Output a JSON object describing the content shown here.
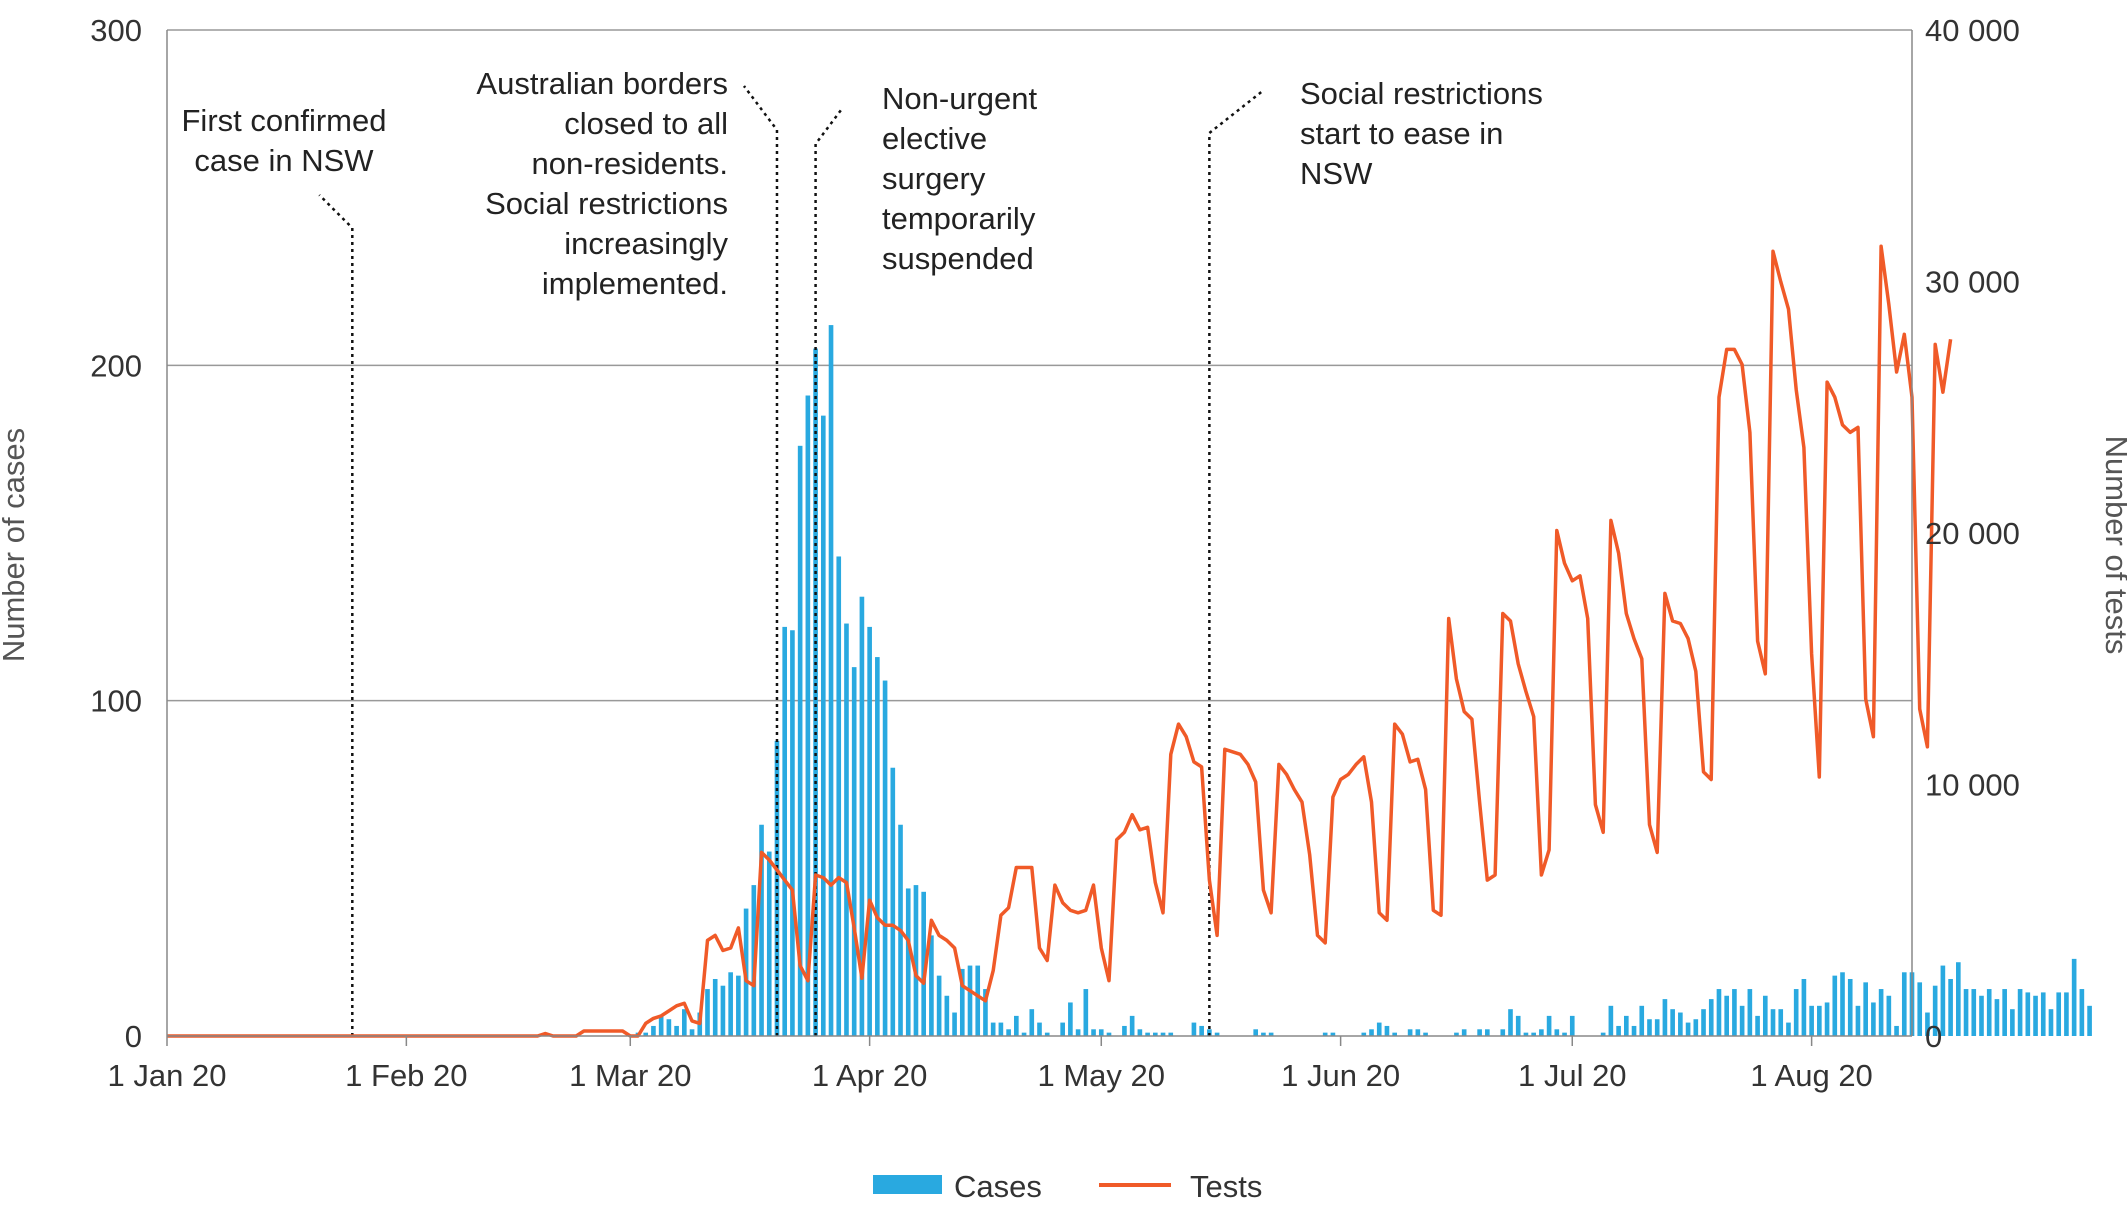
{
  "chart_data": {
    "type": "bar+line",
    "x_range": [
      "2020-01-01",
      "2020-08-14"
    ],
    "x_ticks": [
      {
        "date": "2020-01-01",
        "label": "1 Jan 20"
      },
      {
        "date": "2020-02-01",
        "label": "1 Feb 20"
      },
      {
        "date": "2020-03-01",
        "label": "1 Mar 20"
      },
      {
        "date": "2020-04-01",
        "label": "1 Apr 20"
      },
      {
        "date": "2020-05-01",
        "label": "1 May 20"
      },
      {
        "date": "2020-06-01",
        "label": "1 Jun 20"
      },
      {
        "date": "2020-07-01",
        "label": "1 Jul 20"
      },
      {
        "date": "2020-08-01",
        "label": "1 Aug 20"
      }
    ],
    "y_left": {
      "label": "Number of cases",
      "range": [
        0,
        300
      ],
      "ticks": [
        0,
        100,
        200,
        300
      ],
      "tick_labels": [
        "0",
        "100",
        "200",
        "300"
      ]
    },
    "y_right": {
      "label": "Number of tests",
      "range": [
        0,
        40000
      ],
      "ticks": [
        0,
        10000,
        20000,
        30000,
        40000
      ],
      "tick_labels": [
        "0",
        "10 000",
        "20 000",
        "30 000",
        "40 000"
      ]
    },
    "grid": "horizontal",
    "legend_position": "bottom-center",
    "annotations": [
      {
        "date": "2020-01-25",
        "lines": [
          "First confirmed",
          "case in NSW"
        ]
      },
      {
        "date": "2020-03-20",
        "lines": [
          "Australian borders",
          "closed to all",
          "non-residents.",
          "Social restrictions",
          "increasingly",
          "implemented."
        ]
      },
      {
        "date": "2020-03-25",
        "lines": [
          "Non-urgent",
          "elective",
          "surgery",
          "temporarily",
          "suspended"
        ]
      },
      {
        "date": "2020-05-15",
        "lines": [
          "Social restrictions",
          "start to ease in",
          "NSW"
        ]
      }
    ],
    "series": [
      {
        "name": "Cases",
        "type": "bar",
        "axis": "left",
        "color": "#29a9e0",
        "start_date": "2020-03-01",
        "values": [
          0,
          1,
          1,
          3,
          6,
          5,
          3,
          8,
          2,
          7,
          14,
          17,
          15,
          19,
          18,
          38,
          45,
          63,
          55,
          88,
          122,
          121,
          176,
          191,
          205,
          185,
          212,
          143,
          123,
          110,
          131,
          122,
          113,
          106,
          80,
          63,
          44,
          45,
          43,
          30,
          18,
          12,
          7,
          20,
          21,
          21,
          14,
          4,
          4,
          2,
          6,
          1,
          8,
          4,
          1,
          0,
          4,
          10,
          2,
          14,
          2,
          2,
          1,
          0,
          3,
          6,
          2,
          1,
          1,
          1,
          1,
          0,
          0,
          4,
          3,
          2,
          1,
          0,
          0,
          0,
          0,
          2,
          1,
          1,
          0,
          0,
          0,
          0,
          0,
          0,
          1,
          1,
          0,
          0,
          0,
          1,
          2,
          4,
          3,
          1,
          0,
          2,
          2,
          1,
          0,
          0,
          0,
          1,
          2,
          0,
          2,
          2,
          0,
          2,
          8,
          6,
          1,
          1,
          2,
          6,
          2,
          1,
          6,
          0,
          0,
          0,
          1,
          9,
          3,
          6,
          3,
          9,
          5,
          5,
          11,
          8,
          7,
          4,
          5,
          8,
          11,
          14,
          12,
          14,
          9,
          14,
          6,
          12,
          8,
          8,
          4,
          14,
          17,
          9,
          9,
          10,
          18,
          19,
          17,
          9,
          16,
          10,
          14,
          12,
          3,
          19,
          19,
          16,
          7,
          15,
          21,
          17,
          22,
          14,
          14,
          12,
          14,
          11,
          14,
          8,
          14,
          13,
          12,
          13,
          8,
          13,
          13,
          23,
          14,
          9
        ]
      },
      {
        "name": "Tests",
        "type": "line",
        "axis": "right",
        "color": "#f05a28",
        "start_date": "2020-01-01",
        "values": [
          0,
          0,
          0,
          0,
          0,
          0,
          0,
          0,
          0,
          0,
          0,
          0,
          0,
          0,
          0,
          0,
          0,
          0,
          0,
          0,
          0,
          0,
          0,
          0,
          0,
          0,
          0,
          0,
          0,
          0,
          0,
          0,
          0,
          0,
          0,
          0,
          0,
          0,
          0,
          0,
          0,
          0,
          0,
          0,
          0,
          0,
          0,
          0,
          0,
          100,
          0,
          0,
          0,
          0,
          200,
          200,
          200,
          200,
          200,
          200,
          0,
          0,
          500,
          700,
          800,
          1000,
          1200,
          1300,
          600,
          500,
          3800,
          4000,
          3400,
          3500,
          4300,
          2200,
          2000,
          7300,
          7000,
          6600,
          6200,
          5800,
          2800,
          2200,
          6400,
          6300,
          6000,
          6300,
          6100,
          4300,
          2300,
          5400,
          4700,
          4400,
          4400,
          4200,
          3800,
          2400,
          2100,
          4600,
          4000,
          3800,
          3500,
          2000,
          1800,
          1600,
          1400,
          2600,
          4800,
          5100,
          6700,
          6700,
          6700,
          3500,
          3000,
          6000,
          5300,
          5000,
          4900,
          5000,
          6000,
          3500,
          2200,
          7800,
          8100,
          8800,
          8200,
          8300,
          6100,
          4900,
          11200,
          12400,
          11900,
          10900,
          10700,
          6200,
          4000,
          11400,
          11300,
          11200,
          10800,
          10100,
          5800,
          4900,
          10800,
          10400,
          9800,
          9300,
          7200,
          4000,
          3700,
          9500,
          10200,
          10400,
          10800,
          11100,
          9300,
          4900,
          4600,
          12400,
          12000,
          10900,
          11000,
          9800,
          5000,
          4800,
          16600,
          14200,
          12900,
          12600,
          9300,
          6200,
          6400,
          16800,
          16500,
          14800,
          13700,
          12700,
          6400,
          7400,
          20100,
          18800,
          18100,
          18300,
          16600,
          9200,
          8100,
          20500,
          19200,
          16800,
          15800,
          15000,
          8400,
          7300,
          17600,
          16500,
          16400,
          15800,
          14500,
          10500,
          10200,
          25400,
          27300,
          27300,
          26700,
          24000,
          15700,
          14400,
          31200,
          30000,
          28900,
          25700,
          23400,
          15200,
          10300,
          26000,
          25400,
          24300,
          24000,
          24200,
          13400,
          11900,
          31400,
          29100,
          26400,
          27900,
          25400,
          13000,
          11500,
          27500,
          25600,
          27700
        ]
      }
    ]
  },
  "legend": {
    "items": [
      {
        "label": "Cases",
        "color": "#29a9e0"
      },
      {
        "label": "Tests",
        "color": "#f05a28"
      }
    ]
  }
}
